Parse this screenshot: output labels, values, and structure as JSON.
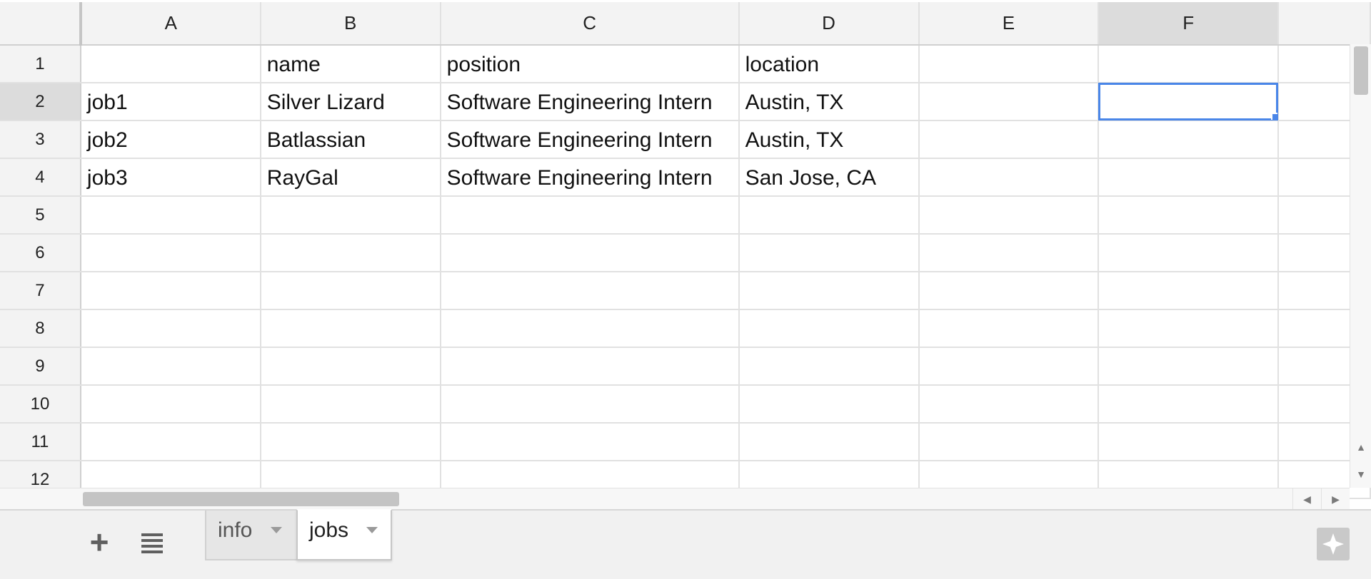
{
  "columns": [
    "A",
    "B",
    "C",
    "D",
    "E",
    "F"
  ],
  "rows": [
    {
      "num": "1",
      "cells": [
        "",
        "name",
        "position",
        "location",
        "",
        ""
      ]
    },
    {
      "num": "2",
      "cells": [
        "job1",
        "Silver Lizard",
        "Software Engineering Intern",
        "Austin, TX",
        "",
        ""
      ]
    },
    {
      "num": "3",
      "cells": [
        "job2",
        "Batlassian",
        "Software Engineering Intern",
        "Austin, TX",
        "",
        ""
      ]
    },
    {
      "num": "4",
      "cells": [
        "job3",
        "RayGal",
        "Software Engineering Intern",
        "San Jose, CA",
        "",
        ""
      ]
    },
    {
      "num": "5",
      "cells": [
        "",
        "",
        "",
        "",
        "",
        ""
      ]
    },
    {
      "num": "6",
      "cells": [
        "",
        "",
        "",
        "",
        "",
        ""
      ]
    },
    {
      "num": "7",
      "cells": [
        "",
        "",
        "",
        "",
        "",
        ""
      ]
    },
    {
      "num": "8",
      "cells": [
        "",
        "",
        "",
        "",
        "",
        ""
      ]
    },
    {
      "num": "9",
      "cells": [
        "",
        "",
        "",
        "",
        "",
        ""
      ]
    },
    {
      "num": "10",
      "cells": [
        "",
        "",
        "",
        "",
        "",
        ""
      ]
    },
    {
      "num": "11",
      "cells": [
        "",
        "",
        "",
        "",
        "",
        ""
      ]
    },
    {
      "num": "12",
      "cells": [
        "",
        "",
        "",
        "",
        "",
        ""
      ]
    }
  ],
  "selection": {
    "column": "F",
    "row": "2"
  },
  "sheet_tabs": [
    {
      "label": "info",
      "active": false
    },
    {
      "label": "jobs",
      "active": true
    }
  ],
  "icons": {
    "add_sheet": "plus-icon",
    "all_sheets": "list-icon",
    "explore": "explore-icon"
  },
  "colors": {
    "selection": "#4a86e8",
    "header_bg": "#f3f3f3",
    "gridline": "#e1e1e1"
  }
}
